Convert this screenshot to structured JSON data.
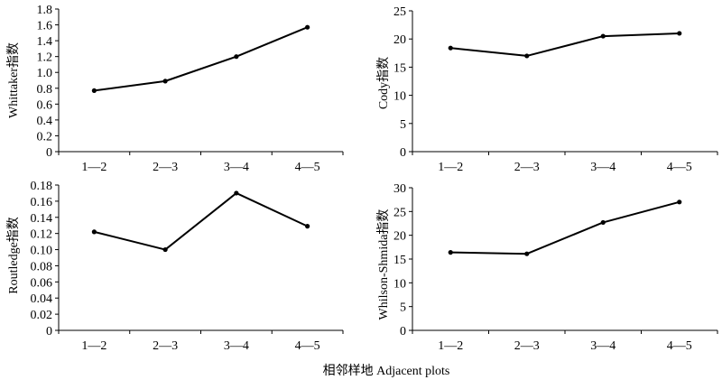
{
  "chart_data": [
    {
      "type": "line",
      "categories": [
        "1—2",
        "2—3",
        "3—4",
        "4—5"
      ],
      "values": [
        0.77,
        0.89,
        1.2,
        1.57
      ],
      "ylabel": "Whittaker指数",
      "xlabel": "",
      "ylim": [
        0,
        1.8
      ],
      "yticks": [
        "0",
        "0.2",
        "0.4",
        "0.6",
        "0.8",
        "1.0",
        "1.2",
        "1.4",
        "1.6",
        "1.8"
      ],
      "grid": false,
      "legend": "none"
    },
    {
      "type": "line",
      "categories": [
        "1—2",
        "2—3",
        "3—4",
        "4—5"
      ],
      "values": [
        18.4,
        17.0,
        20.5,
        21.0
      ],
      "ylabel": "Cody指数",
      "xlabel": "",
      "ylim": [
        0,
        25
      ],
      "yticks": [
        "0",
        "5",
        "10",
        "15",
        "20",
        "25"
      ],
      "grid": false,
      "legend": "none"
    },
    {
      "type": "line",
      "categories": [
        "1—2",
        "2—3",
        "3—4",
        "4—5"
      ],
      "values": [
        0.122,
        0.1,
        0.17,
        0.129
      ],
      "ylabel": "Routledge指数",
      "xlabel": "",
      "ylim": [
        0,
        0.18
      ],
      "yticks": [
        "0",
        "0.02",
        "0.04",
        "0.06",
        "0.08",
        "0.10",
        "0.12",
        "0.14",
        "0.16",
        "0.18"
      ],
      "grid": false,
      "legend": "none"
    },
    {
      "type": "line",
      "categories": [
        "1—2",
        "2—3",
        "3—4",
        "4—5"
      ],
      "values": [
        16.4,
        16.1,
        22.7,
        27.0
      ],
      "ylabel": "Whilson-Shmida指数",
      "xlabel": "",
      "ylim": [
        0,
        30
      ],
      "yticks": [
        "0",
        "5",
        "10",
        "15",
        "20",
        "25",
        "30"
      ],
      "grid": false,
      "legend": "none"
    }
  ],
  "footer": {
    "xlabel": "相邻样地 Adjacent plots"
  },
  "colors": {
    "line": "#000000",
    "axis": "#000000",
    "background": "#ffffff"
  }
}
